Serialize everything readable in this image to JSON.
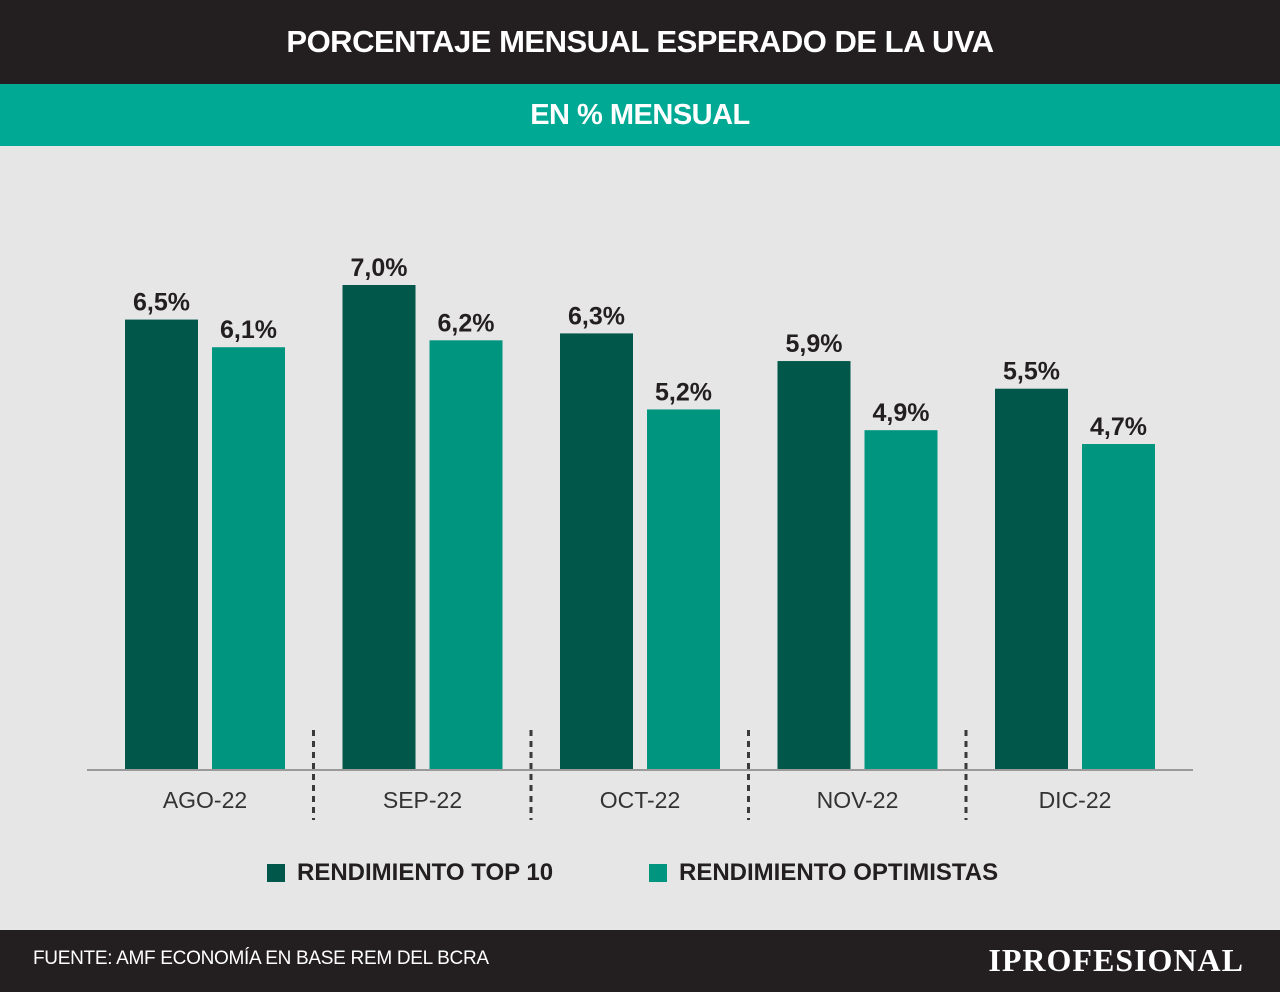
{
  "header": {
    "title": "PORCENTAJE MENSUAL ESPERADO DE LA UVA",
    "subtitle": "EN % MENSUAL"
  },
  "footer": {
    "source": "FUENTE: AMF ECONOMÍA EN BASE REM DEL BCRA",
    "logo": "IPROFESIONAL"
  },
  "colors": {
    "title_bg": "#231f20",
    "accent": "#00a994",
    "series_dark": "#00574a",
    "series_light": "#00957e",
    "background": "#e6e6e6"
  },
  "chart_data": {
    "type": "bar",
    "title": "PORCENTAJE MENSUAL ESPERADO DE LA UVA",
    "subtitle": "EN % MENSUAL",
    "categories": [
      "AGO-22",
      "SEP-22",
      "OCT-22",
      "NOV-22",
      "DIC-22"
    ],
    "series": [
      {
        "name": "RENDIMIENTO TOP 10",
        "values": [
          6.5,
          7.0,
          6.3,
          5.9,
          5.5
        ],
        "labels": [
          "6,5%",
          "7,0%",
          "6,3%",
          "5,9%",
          "5,5%"
        ],
        "color": "#00574a"
      },
      {
        "name": "RENDIMIENTO OPTIMISTAS",
        "values": [
          6.1,
          6.2,
          5.2,
          4.9,
          4.7
        ],
        "labels": [
          "6,1%",
          "6,2%",
          "5,2%",
          "4,9%",
          "4,7%"
        ],
        "color": "#00957e"
      }
    ],
    "xlabel": "",
    "ylabel": "",
    "ylim": [
      0,
      7.0
    ],
    "grid": false,
    "legend": "bottom",
    "legend_position": "bottom-center"
  }
}
